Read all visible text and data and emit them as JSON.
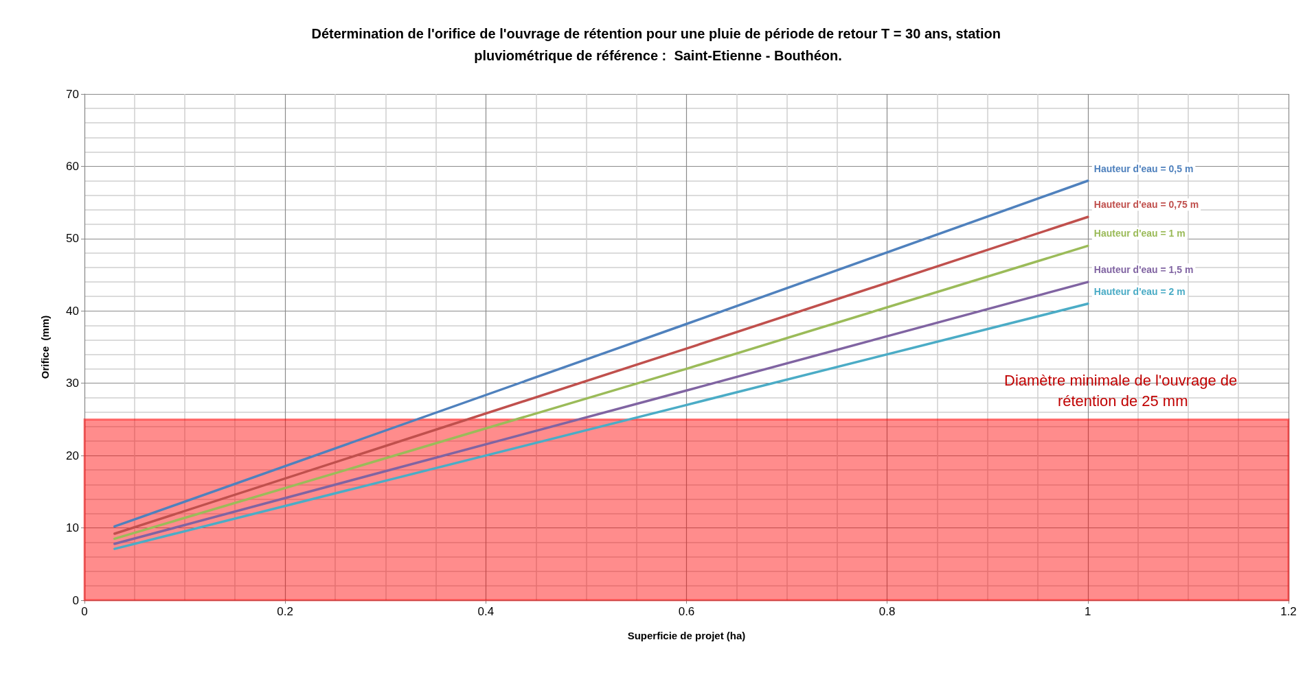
{
  "chart_data": {
    "type": "line",
    "title": "Détermination de l'orifice de l'ouvrage de rétention pour une pluie de période de retour T = 30 ans, station pluviométrique de référence :  Saint-Etienne - Bouthéon.",
    "xlabel": "Superficie de projet (ha)",
    "ylabel": "Orifice  (mm)",
    "series": [
      {
        "name": "Hauteur d'eau = 0,5 m",
        "color": "#4f81bd",
        "x": [
          0.03,
          0.6,
          1
        ],
        "values": [
          10.2,
          38.2,
          58
        ]
      },
      {
        "name": "Hauteur d'eau = 0,75 m",
        "color": "#c0504d",
        "x": [
          0.03,
          0.6,
          1
        ],
        "values": [
          9.2,
          34.8,
          53
        ]
      },
      {
        "name": "Hauteur d'eau = 1 m",
        "color": "#9bbb59",
        "x": [
          0.03,
          0.6,
          1
        ],
        "values": [
          8.5,
          32,
          49
        ]
      },
      {
        "name": "Hauteur d'eau = 1,5 m",
        "color": "#8064a2",
        "x": [
          0.03,
          0.6,
          1
        ],
        "values": [
          7.8,
          29,
          44
        ]
      },
      {
        "name": "Hauteur d'eau = 2 m",
        "color": "#4bacc6",
        "x": [
          0.03,
          0.6,
          1
        ],
        "values": [
          7.1,
          27,
          41
        ]
      }
    ],
    "bands": [
      {
        "axis": "y",
        "from": 0,
        "to": 25,
        "label": "Diamètre minimale de l'ouvrage de rétention de 25 mm",
        "color": "#ff0000"
      }
    ],
    "xlim": [
      0,
      1.2
    ],
    "xticks": [
      0,
      0.2,
      0.4,
      0.6,
      0.8,
      1,
      1.2
    ],
    "ylim": [
      0,
      70
    ],
    "yticks": [
      0,
      10,
      20,
      30,
      40,
      50,
      60,
      70
    ],
    "grid": true,
    "legend": false,
    "marker": "none",
    "line_style": "solid"
  }
}
